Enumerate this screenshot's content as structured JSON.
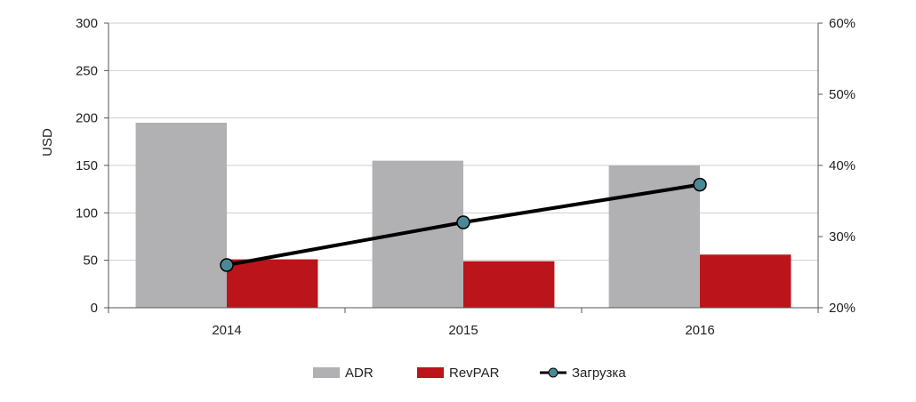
{
  "chart_data": {
    "type": "bar",
    "categories": [
      "2014",
      "2015",
      "2016"
    ],
    "series": [
      {
        "name": "ADR",
        "kind": "bar",
        "axis": "left",
        "color": "#b1b1b3",
        "values": [
          195,
          155,
          150
        ]
      },
      {
        "name": "RevPAR",
        "kind": "bar",
        "axis": "left",
        "color": "#bb141a",
        "values": [
          51,
          49,
          56
        ]
      },
      {
        "name": "Загрузка",
        "kind": "line",
        "axis": "right",
        "color": "#000000",
        "marker_color": "#4a8a96",
        "values": [
          26,
          32,
          37.3
        ]
      }
    ],
    "ylabel": "USD",
    "ylim": [
      0,
      300
    ],
    "yticks": [
      "0",
      "50",
      "100",
      "150",
      "200",
      "250",
      "300"
    ],
    "y2lim": [
      20,
      60
    ],
    "y2ticks": [
      "20%",
      "30%",
      "40%",
      "50%",
      "60%"
    ],
    "grid": true,
    "legend_position": "bottom-center"
  }
}
